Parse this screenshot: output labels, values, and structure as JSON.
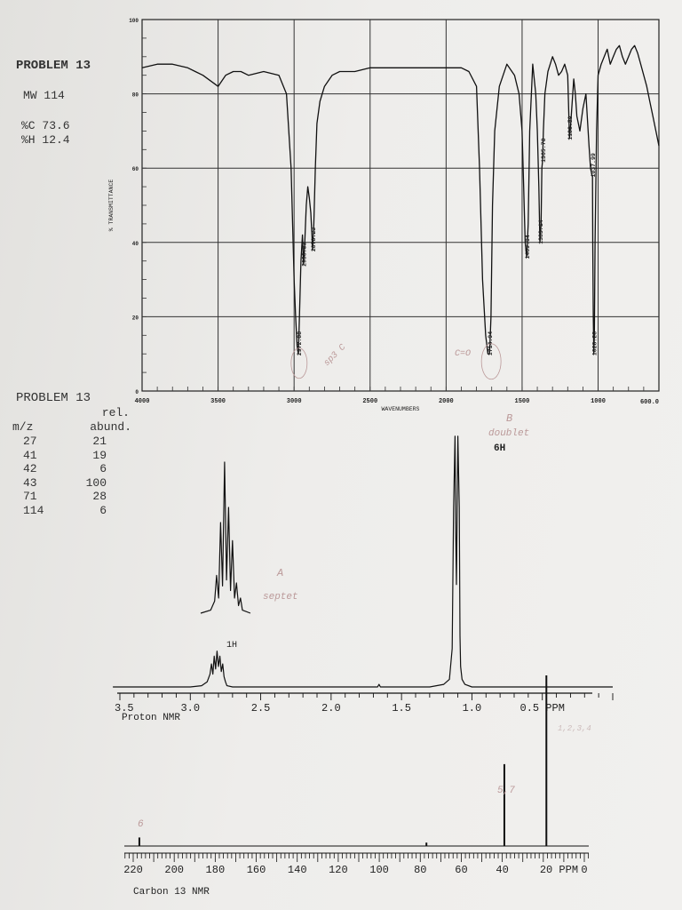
{
  "ir_panel": {
    "problem": "PROBLEM 13",
    "mw": "MW 114",
    "pct_c": "%C 73.6",
    "pct_h": "%H 12.4"
  },
  "ms_panel": {
    "problem": "PROBLEM 13",
    "col1_header": "m/z",
    "col2_header_line1": "rel.",
    "col2_header_line2": "abund.",
    "rows": [
      {
        "mz": "27",
        "abund": "21"
      },
      {
        "mz": "41",
        "abund": "19"
      },
      {
        "mz": "42",
        "abund": "6"
      },
      {
        "mz": "43",
        "abund": "100"
      },
      {
        "mz": "71",
        "abund": "28"
      },
      {
        "mz": "114",
        "abund": "6"
      }
    ]
  },
  "annotations": {
    "sp3c": "sp3 C",
    "co": "C=O",
    "b_letter": "B",
    "doublet": "doublet",
    "six_h": "6H",
    "a_letter": "A",
    "septet": "septet",
    "one_h": "1H",
    "carbon_label_low": "1,2,3,4",
    "carbon_label_mid": "5,7",
    "carbon_label_high": "6"
  },
  "chart_data": [
    {
      "type": "line",
      "title": "",
      "xlabel": "WAVENUMBERS",
      "ylabel": "% TRANSMITTANCE",
      "xlim": [
        4000,
        600
      ],
      "ylim": [
        0,
        100
      ],
      "x_ticks": [
        "4000",
        "3500",
        "3000",
        "2500",
        "2000",
        "1500",
        "1000",
        "600.0"
      ],
      "y_ticks": [
        "100",
        "80",
        "60",
        "40",
        "20",
        "0"
      ],
      "grid": true,
      "peak_labels": [
        {
          "x": 2972.88,
          "y": 10,
          "label": "2972.88"
        },
        {
          "x": 2938.83,
          "y": 34,
          "label": "2938.83"
        },
        {
          "x": 2878.23,
          "y": 38,
          "label": "2878.23"
        },
        {
          "x": 1714.94,
          "y": 10,
          "label": "1714.94"
        },
        {
          "x": 1469.94,
          "y": 36,
          "label": "1469.94"
        },
        {
          "x": 1383.14,
          "y": 40,
          "label": "1383.14"
        },
        {
          "x": 1365.78,
          "y": 62,
          "label": "1365.78"
        },
        {
          "x": 1188.59,
          "y": 68,
          "label": "1188.59"
        },
        {
          "x": 1037.99,
          "y": 58,
          "label": "1037.99"
        },
        {
          "x": 1028.28,
          "y": 10,
          "label": "1028.28"
        }
      ],
      "series": [
        {
          "x": [
            4000,
            3900,
            3800,
            3700,
            3650,
            3600,
            3500,
            3450,
            3400,
            3350,
            3300,
            3200,
            3100,
            3050,
            3020,
            3000,
            2990,
            2980,
            2972,
            2965,
            2955,
            2945,
            2938,
            2930,
            2920,
            2910,
            2900,
            2890,
            2878,
            2870,
            2860,
            2850,
            2830,
            2800,
            2750,
            2700,
            2600,
            2500,
            2400,
            2300,
            2200,
            2100,
            2000,
            1900,
            1850,
            1800,
            1780,
            1760,
            1740,
            1725,
            1714,
            1705,
            1695,
            1680,
            1650,
            1600,
            1550,
            1520,
            1500,
            1490,
            1480,
            1470,
            1460,
            1450,
            1430,
            1410,
            1400,
            1390,
            1383,
            1375,
            1370,
            1365,
            1360,
            1350,
            1330,
            1300,
            1280,
            1260,
            1240,
            1220,
            1200,
            1188,
            1180,
            1170,
            1160,
            1150,
            1140,
            1120,
            1100,
            1080,
            1060,
            1050,
            1040,
            1037,
            1035,
            1032,
            1028,
            1025,
            1020,
            1010,
            1000,
            980,
            960,
            940,
            920,
            900,
            880,
            860,
            840,
            820,
            800,
            780,
            760,
            740,
            720,
            700,
            680,
            660,
            640,
            620,
            600
          ],
          "y": [
            87,
            88,
            88,
            87,
            86,
            85,
            82,
            85,
            86,
            86,
            85,
            86,
            85,
            80,
            60,
            30,
            20,
            12,
            10,
            20,
            35,
            42,
            34,
            40,
            50,
            55,
            52,
            48,
            38,
            45,
            60,
            72,
            78,
            82,
            85,
            86,
            86,
            87,
            87,
            87,
            87,
            87,
            87,
            87,
            86,
            82,
            60,
            30,
            15,
            10,
            10,
            20,
            50,
            70,
            82,
            88,
            85,
            80,
            70,
            55,
            40,
            36,
            45,
            70,
            88,
            80,
            70,
            55,
            40,
            45,
            60,
            62,
            70,
            80,
            86,
            90,
            88,
            85,
            86,
            88,
            85,
            68,
            72,
            78,
            84,
            80,
            74,
            70,
            76,
            80,
            66,
            60,
            58,
            58,
            40,
            20,
            10,
            15,
            40,
            70,
            85,
            88,
            90,
            92,
            88,
            90,
            92,
            93,
            90,
            88,
            90,
            92,
            93,
            91,
            88,
            85,
            82,
            78,
            74,
            70,
            66
          ]
        }
      ]
    },
    {
      "type": "line",
      "title": "",
      "xlabel": "Proton NMR",
      "xlim": [
        3.5,
        0
      ],
      "x_ticks": [
        "3.5",
        "3.0",
        "2.5",
        "2.0",
        "1.5",
        "1.0",
        "0.5 PPM"
      ],
      "series": [
        {
          "x": [
            3.55,
            3.0,
            2.92,
            2.88,
            2.86,
            2.85,
            2.84,
            2.83,
            2.82,
            2.81,
            2.8,
            2.79,
            2.78,
            2.77,
            2.76,
            2.75,
            2.74,
            2.7,
            2.5,
            2.0,
            1.67,
            1.66,
            1.65,
            1.6,
            1.5,
            1.3,
            1.2,
            1.16,
            1.14,
            1.13,
            1.12,
            1.115,
            1.11,
            1.1,
            1.09,
            1.085,
            1.08,
            1.07,
            1.05,
            1.0,
            0.9,
            0.7,
            0.4,
            0.0
          ],
          "y": [
            0,
            0,
            0.5,
            2,
            5,
            9,
            5,
            12,
            7,
            14,
            8,
            12,
            6,
            9,
            4,
            2,
            0.5,
            0,
            0,
            0,
            0,
            1,
            0,
            0,
            0,
            0,
            1,
            3,
            15,
            70,
            98,
            60,
            40,
            98,
            70,
            20,
            8,
            3,
            1,
            0,
            0,
            0,
            0,
            0
          ]
        }
      ],
      "inset": {
        "x": [
          2.95,
          2.9,
          2.88,
          2.87,
          2.86,
          2.85,
          2.84,
          2.83,
          2.82,
          2.81,
          2.8,
          2.79,
          2.78,
          2.77,
          2.76,
          2.75,
          2.74,
          2.7
        ],
        "y": [
          0,
          2,
          8,
          25,
          10,
          60,
          18,
          100,
          22,
          70,
          15,
          48,
          10,
          20,
          5,
          10,
          2,
          0
        ]
      }
    },
    {
      "type": "bar",
      "title": "",
      "xlabel": "Carbon 13 NMR",
      "xlim": [
        220,
        0
      ],
      "x_ticks": [
        "220",
        "200",
        "180",
        "160",
        "140",
        "120",
        "100",
        "80",
        "60",
        "40",
        "20 PPM",
        "0"
      ],
      "peaks": [
        {
          "x": 217,
          "y": 5
        },
        {
          "x": 77,
          "y": 2
        },
        {
          "x": 39,
          "y": 48
        },
        {
          "x": 18.5,
          "y": 100
        }
      ]
    }
  ]
}
